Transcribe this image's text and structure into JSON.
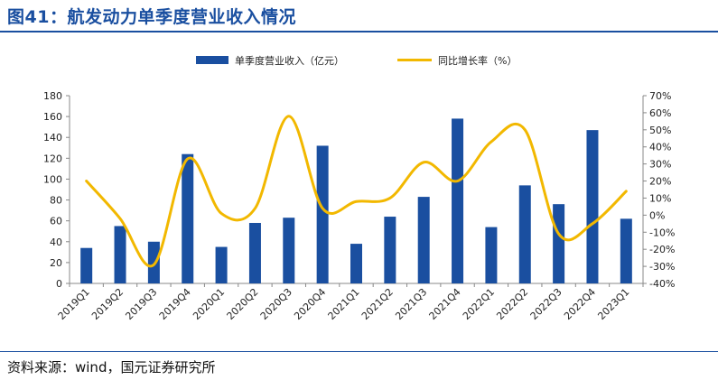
{
  "header": {
    "title": "图41：航发动力单季度营业收入情况"
  },
  "footer": {
    "source": "资料来源：wind，国元证券研究所"
  },
  "colors": {
    "bar": "#1a4fa0",
    "line": "#f2b800",
    "axis": "#888888",
    "title": "#1a4fa0"
  },
  "chart_data": {
    "type": "bar",
    "categories": [
      "2019Q1",
      "2019Q2",
      "2019Q3",
      "2019Q4",
      "2020Q1",
      "2020Q2",
      "2020Q3",
      "2020Q4",
      "2021Q1",
      "2021Q2",
      "2021Q3",
      "2021Q4",
      "2022Q1",
      "2022Q2",
      "2022Q3",
      "2022Q4",
      "2023Q1"
    ],
    "series": [
      {
        "name": "单季度营业收入（亿元）",
        "type": "bar",
        "axis": "left",
        "values": [
          34,
          55,
          40,
          124,
          35,
          58,
          63,
          132,
          38,
          64,
          83,
          158,
          54,
          94,
          76,
          147,
          62
        ]
      },
      {
        "name": "同比增长率（%）",
        "type": "line",
        "axis": "right",
        "smooth": true,
        "values": [
          20,
          -2,
          -29,
          33,
          1,
          4,
          58,
          4,
          8,
          10,
          31,
          20,
          43,
          50,
          -11,
          -5,
          14
        ]
      }
    ],
    "left_axis": {
      "min": 0,
      "max": 180,
      "step": 20,
      "tick_labels": [
        "0",
        "20",
        "40",
        "60",
        "80",
        "100",
        "120",
        "140",
        "160",
        "180"
      ]
    },
    "right_axis": {
      "min": -40,
      "max": 70,
      "step": 10,
      "tick_labels": [
        "-40%",
        "-30%",
        "-20%",
        "-10%",
        "0%",
        "10%",
        "20%",
        "30%",
        "40%",
        "50%",
        "60%",
        "70%"
      ]
    },
    "legend": {
      "position": "top"
    },
    "grid": false
  }
}
